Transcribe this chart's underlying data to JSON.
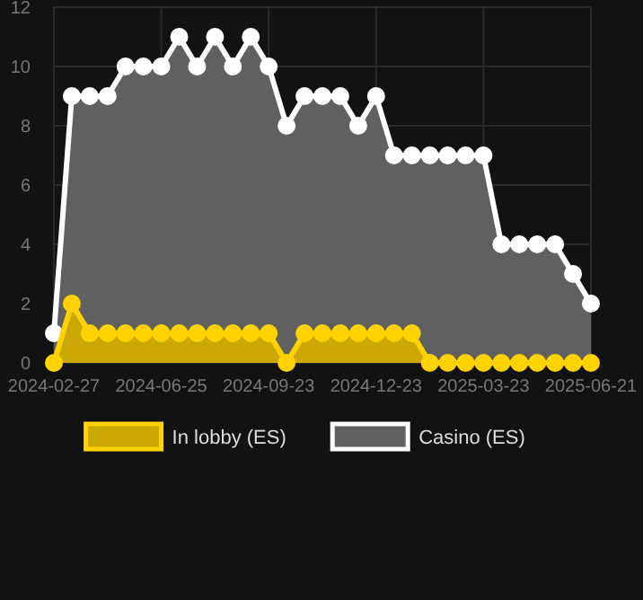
{
  "chart_data": {
    "type": "area",
    "categories": [
      "2024-02-27",
      null,
      null,
      null,
      null,
      null,
      "2024-06-25",
      null,
      null,
      null,
      null,
      null,
      "2024-09-23",
      null,
      null,
      null,
      null,
      null,
      "2024-12-23",
      null,
      null,
      null,
      null,
      null,
      "2025-03-23",
      null,
      null,
      null,
      null,
      null,
      "2025-06-21"
    ],
    "series": [
      {
        "name": "In lobby (ES)",
        "color": "#ffd200",
        "values": [
          0,
          2,
          1,
          1,
          1,
          1,
          1,
          1,
          1,
          1,
          1,
          1,
          1,
          0,
          1,
          1,
          1,
          1,
          1,
          1,
          1,
          0,
          0,
          0,
          0,
          0,
          0,
          0,
          0,
          0,
          0
        ]
      },
      {
        "name": "Casino (ES)",
        "color": "#ffffff",
        "values": [
          1,
          9,
          9,
          9,
          10,
          10,
          10,
          11,
          10,
          11,
          10,
          11,
          10,
          8,
          9,
          9,
          9,
          8,
          9,
          7,
          7,
          7,
          7,
          7,
          7,
          4,
          4,
          4,
          4,
          3,
          2
        ]
      }
    ],
    "ylim": [
      0,
      12
    ],
    "yticks": [
      0,
      2,
      4,
      6,
      8,
      10,
      12
    ],
    "grid": true,
    "legend": "bottom",
    "marker": "circle"
  }
}
